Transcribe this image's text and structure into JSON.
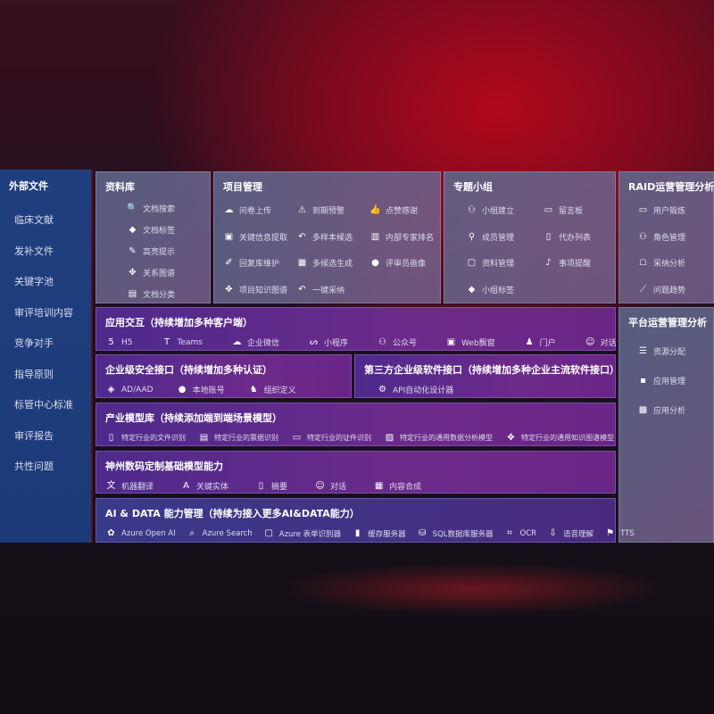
{
  "sidebar": {
    "title": "外部文件",
    "items": [
      "临床文献",
      "发补文件",
      "关键字池",
      "审评培训内容",
      "竞争对手",
      "指导原则",
      "标管中心标准",
      "审评报告",
      "共性问题"
    ]
  },
  "library": {
    "title": "资料库",
    "items": [
      {
        "label": "文档搜索",
        "icon": "document-search-icon"
      },
      {
        "label": "文档标签",
        "icon": "tag-icon"
      },
      {
        "label": "高亮提示",
        "icon": "pencil-icon"
      },
      {
        "label": "关系图谱",
        "icon": "graph-icon"
      },
      {
        "label": "文档分类",
        "icon": "document-category-icon"
      }
    ]
  },
  "project": {
    "title": "项目管理",
    "items": [
      {
        "label": "问卷上传",
        "icon": "cloud-upload-icon"
      },
      {
        "label": "到期预警",
        "icon": "alarm-icon"
      },
      {
        "label": "点赞感谢",
        "icon": "thumbs-up-icon"
      },
      {
        "label": "关键信息提取",
        "icon": "window-icon"
      },
      {
        "label": "多样本候选",
        "icon": "reply-icon"
      },
      {
        "label": "内部专家排名",
        "icon": "ranking-icon"
      },
      {
        "label": "回复库维护",
        "icon": "edit-icon"
      },
      {
        "label": "多候选生成",
        "icon": "puzzle-icon"
      },
      {
        "label": "评审员画像",
        "icon": "user-icon"
      },
      {
        "label": "项目知识图谱",
        "icon": "graph-icon"
      },
      {
        "label": "一键采纳",
        "icon": "reply-icon"
      }
    ]
  },
  "group": {
    "title": "专题小组",
    "items": [
      {
        "label": "小组建立",
        "icon": "users-icon"
      },
      {
        "label": "留言板",
        "icon": "bbs-icon"
      },
      {
        "label": "成员管理",
        "icon": "user-add-icon"
      },
      {
        "label": "代办列表",
        "icon": "clipboard-icon"
      },
      {
        "label": "资料管理",
        "icon": "folder-icon"
      },
      {
        "label": "事项提醒",
        "icon": "bell-icon"
      },
      {
        "label": "小组标签",
        "icon": "tag-icon"
      }
    ]
  },
  "raid": {
    "title": "RAID运营管理分析",
    "items": [
      {
        "label": "用户锻炼",
        "icon": "id-card-icon"
      },
      {
        "label": "角色管理",
        "icon": "users-icon"
      },
      {
        "label": "采纳分析",
        "icon": "qa-icon"
      },
      {
        "label": "问题趋势",
        "icon": "trend-icon"
      }
    ]
  },
  "platform": {
    "title": "平台运营管理分析",
    "items": [
      {
        "label": "资源分配",
        "icon": "checklist-icon"
      },
      {
        "label": "应用管理",
        "icon": "apps-icon"
      },
      {
        "label": "应用分析",
        "icon": "chart-icon"
      }
    ]
  },
  "app": {
    "title": "应用交互（持续增加多种客户端）",
    "items": [
      {
        "label": "H5",
        "icon": "html5-icon"
      },
      {
        "label": "Teams",
        "icon": "teams-icon"
      },
      {
        "label": "企业微信",
        "icon": "wechat-icon"
      },
      {
        "label": "小程序",
        "icon": "miniprogram-icon"
      },
      {
        "label": "公众号",
        "icon": "users-icon"
      },
      {
        "label": "Web飘窗",
        "icon": "window-icon"
      },
      {
        "label": "门户",
        "icon": "portal-icon"
      },
      {
        "label": "对话",
        "icon": "chat-icon"
      }
    ]
  },
  "security": {
    "title": "企业级安全接口（持续增加多种认证）",
    "items": [
      {
        "label": "AD/AAD",
        "icon": "diamond-icon"
      },
      {
        "label": "本地账号",
        "icon": "user-icon"
      },
      {
        "label": "组织定义",
        "icon": "org-icon"
      }
    ]
  },
  "thirdparty": {
    "title": "第三方企业级软件接口（持续增加多种企业主流软件接口）",
    "items": [
      {
        "label": "API自动化设计器",
        "icon": "gear-icon"
      }
    ]
  },
  "industry": {
    "title": "产业模型库（持续添加端到端场景模型）",
    "items": [
      {
        "label": "特定行业的文件识别",
        "icon": "file-icon"
      },
      {
        "label": "特定行业的票据识别",
        "icon": "receipt-icon"
      },
      {
        "label": "特定行业的证件识别",
        "icon": "id-card-icon"
      },
      {
        "label": "特定行业的通用数据分析模型",
        "icon": "image-icon"
      },
      {
        "label": "特定行业的通用知识图谱模型",
        "icon": "graph-icon"
      }
    ]
  },
  "base": {
    "title": "神州数码定制基础模型能力",
    "items": [
      {
        "label": "机器翻译",
        "icon": "translate-icon"
      },
      {
        "label": "关键实体",
        "icon": "shield-a-icon"
      },
      {
        "label": "摘要",
        "icon": "document-icon"
      },
      {
        "label": "对话",
        "icon": "chat-icon"
      },
      {
        "label": "内容合成",
        "icon": "puzzle-icon"
      }
    ]
  },
  "ai": {
    "title": "AI & DATA 能力管理（持续为接入更多AI&DATA能力）",
    "items": [
      {
        "label": "Azure Open AI",
        "icon": "openai-icon"
      },
      {
        "label": "Azure Search",
        "icon": "search-icon"
      },
      {
        "label": "Azure 表单识别器",
        "icon": "form-icon"
      },
      {
        "label": "缓存服务器",
        "icon": "server-icon"
      },
      {
        "label": "SQL数据库服务器",
        "icon": "database-icon"
      },
      {
        "label": "OCR",
        "icon": "ocr-icon"
      },
      {
        "label": "语音理解",
        "icon": "speech-icon"
      },
      {
        "label": "TTS",
        "icon": "tts-icon"
      }
    ]
  }
}
